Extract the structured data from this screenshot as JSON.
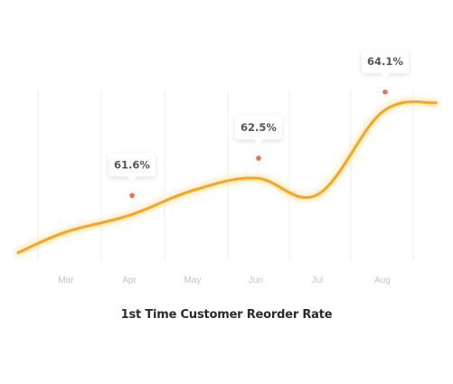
{
  "chart_data": {
    "type": "line",
    "title": "1st Time Customer Reorder Rate",
    "xlabel": "",
    "ylabel": "",
    "categories": [
      "Mar",
      "Apr",
      "May",
      "Jun",
      "Jul",
      "Aug"
    ],
    "series": [
      {
        "values": [
          61.2,
          61.6,
          62.2,
          62.5,
          62.1,
          64.1
        ]
      }
    ],
    "annotations": [
      {
        "category": "Apr",
        "value": 61.6,
        "label": "61.6%"
      },
      {
        "category": "Jun",
        "value": 62.5,
        "label": "62.5%"
      },
      {
        "category": "Aug",
        "value": 64.1,
        "label": "64.1%"
      }
    ],
    "grid": "vertical",
    "legend": "none"
  },
  "colors": {
    "line": "#f5a623",
    "line_glow": "#fde7b4",
    "marker": "#e8734a",
    "gridline": "#ececec",
    "tick_label": "#c4c4c4",
    "callout_text": "#555555",
    "title": "#2b2b2b"
  }
}
